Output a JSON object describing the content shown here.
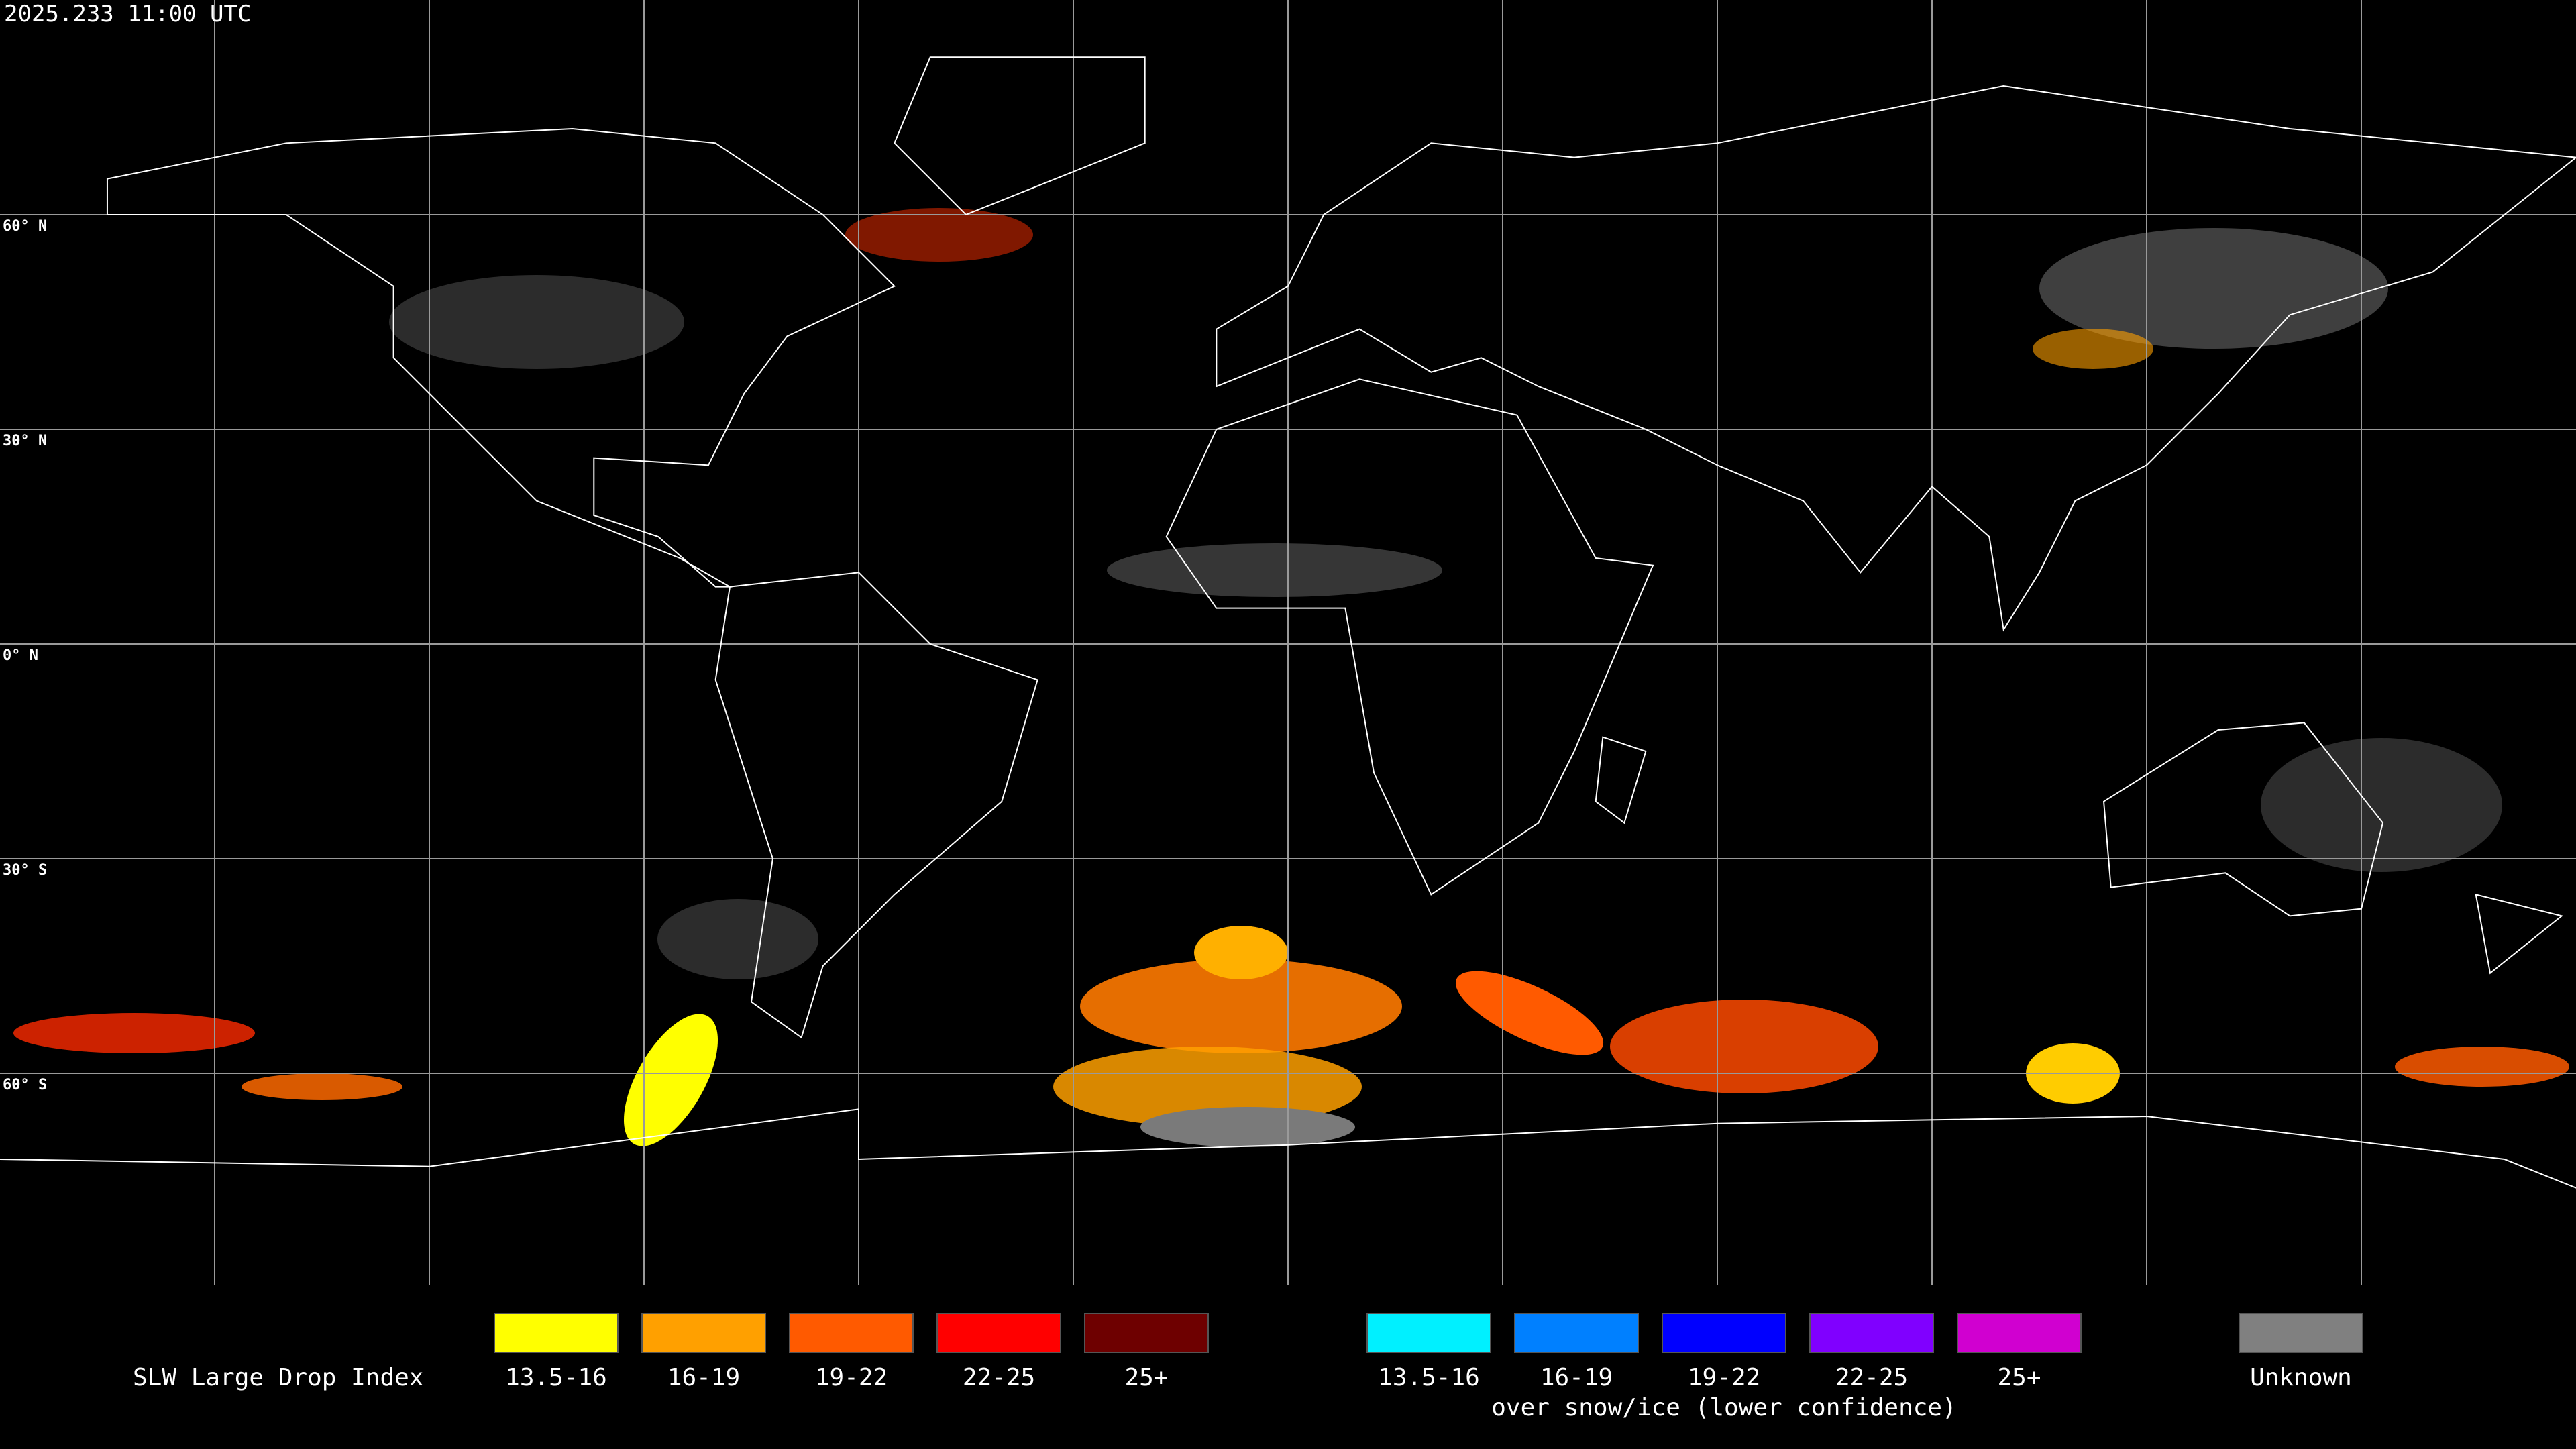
{
  "header": {
    "timestamp": "2025.233 11:00 UTC"
  },
  "map": {
    "latitude_labels": [
      "60° N",
      "30° N",
      "0° N",
      "30° S",
      "60° S"
    ]
  },
  "legend": {
    "title": "SLW Large Drop Index",
    "groups": [
      {
        "items": [
          {
            "label": "13.5-16",
            "color": "#ffff00"
          },
          {
            "label": "16-19",
            "color": "#ffa000"
          },
          {
            "label": "19-22",
            "color": "#ff5a00"
          },
          {
            "label": "22-25",
            "color": "#ff0000"
          },
          {
            "label": "25+",
            "color": "#6e0000"
          }
        ]
      },
      {
        "caption": "over snow/ice (lower confidence)",
        "items": [
          {
            "label": "13.5-16",
            "color": "#00f0ff"
          },
          {
            "label": "16-19",
            "color": "#0080ff"
          },
          {
            "label": "19-22",
            "color": "#0000ff"
          },
          {
            "label": "22-25",
            "color": "#8000ff"
          },
          {
            "label": "25+",
            "color": "#d000d0"
          }
        ]
      }
    ],
    "unknown": {
      "label": "Unknown",
      "color": "#808080"
    }
  }
}
